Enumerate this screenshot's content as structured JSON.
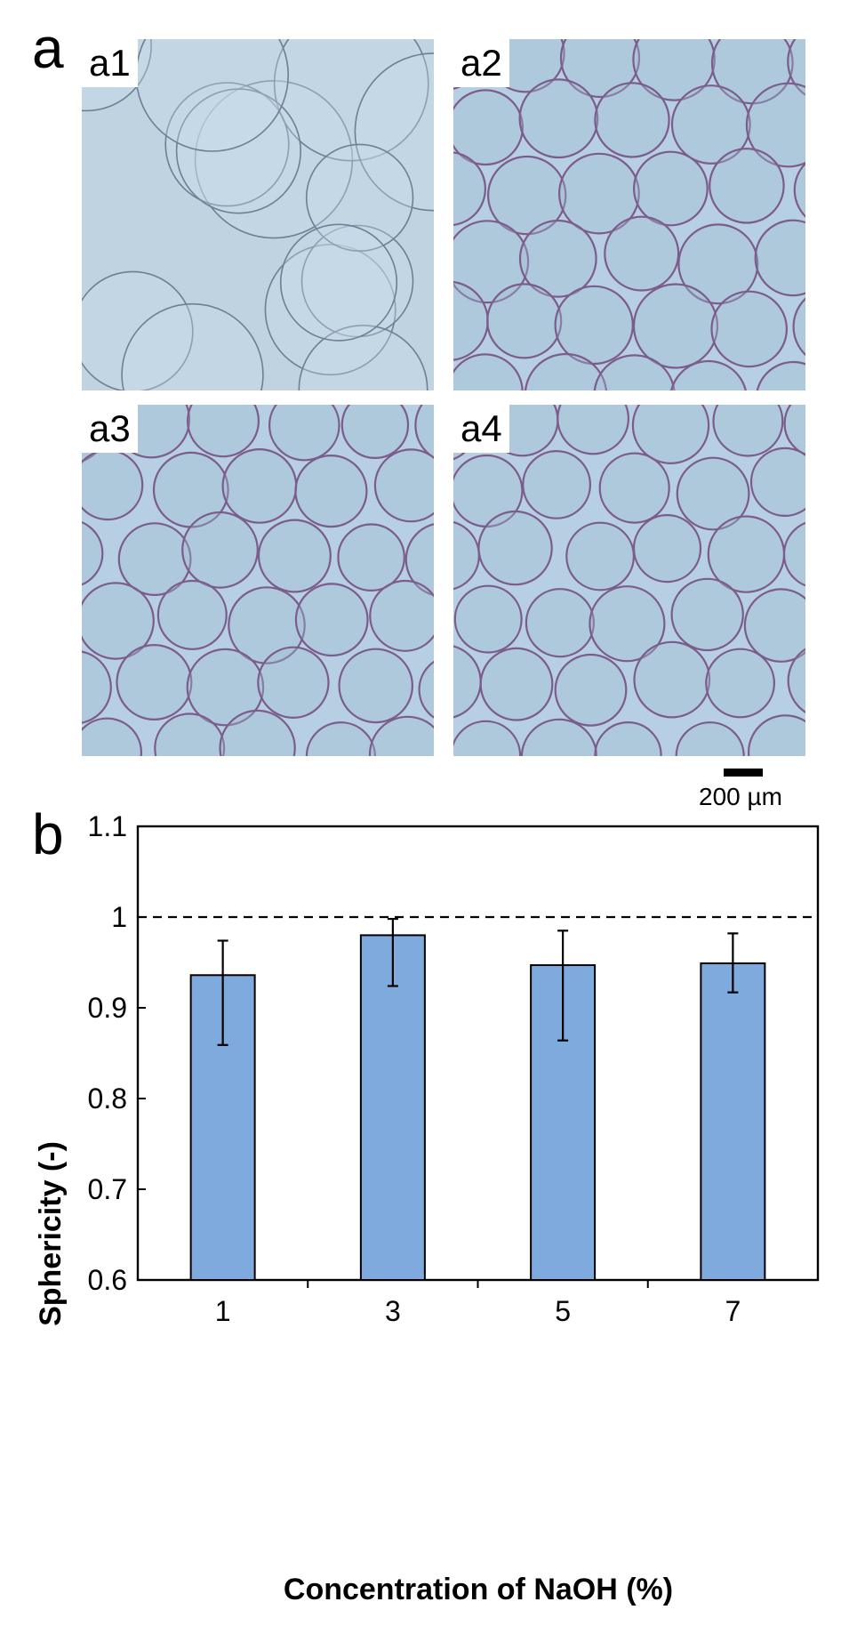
{
  "figure": {
    "panel_a_letter": "a",
    "panel_b_letter": "b",
    "micrographs": [
      {
        "label": "a1"
      },
      {
        "label": "a2"
      },
      {
        "label": "a3"
      },
      {
        "label": "a4"
      }
    ],
    "scale_bar_label": "200 µm"
  },
  "chart_data": {
    "type": "bar",
    "categories": [
      "1",
      "3",
      "5",
      "7"
    ],
    "values": [
      0.936,
      0.98,
      0.947,
      0.949
    ],
    "error_low": [
      0.859,
      0.924,
      0.864,
      0.917
    ],
    "error_high": [
      0.974,
      0.998,
      0.985,
      0.982
    ],
    "xlabel": "Concentration of NaOH (%)",
    "ylabel": "Sphericity (-)",
    "ylim": [
      0.6,
      1.1
    ],
    "yticks": [
      "0.6",
      "0.7",
      "0.8",
      "0.9",
      "1",
      "1.1"
    ],
    "reference_line": 1.0,
    "bar_color": "#7faadd",
    "grid": false
  }
}
